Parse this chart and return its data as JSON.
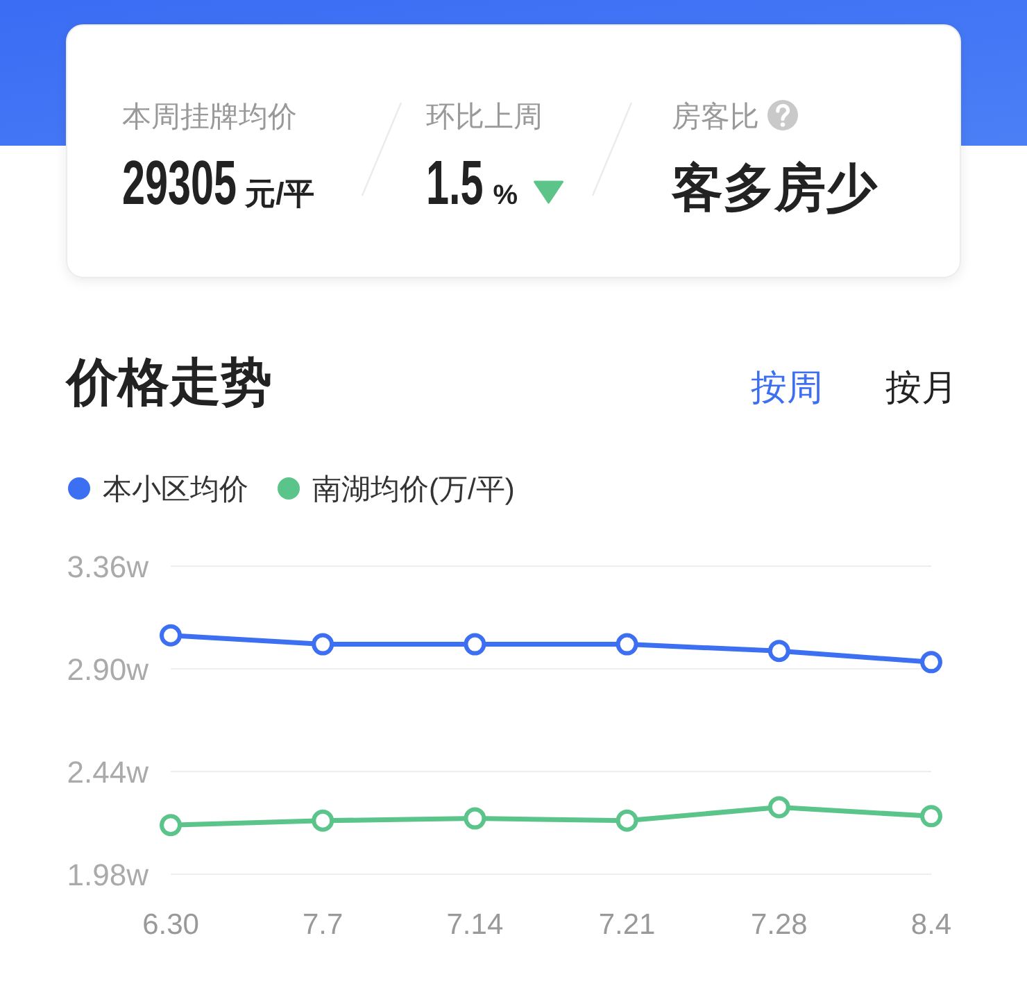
{
  "chart_data": [
    {
      "type": "other",
      "annotations": [
        "本周挂牌均价",
        "29305",
        "元/平",
        "环比上周",
        "1.5",
        "%",
        "房客比",
        "客多房少"
      ]
    },
    {
      "type": "line",
      "title": "价格走势",
      "annotations": [
        "按周",
        "按月"
      ],
      "categories": [
        "6.30",
        "7.7",
        "7.14",
        "7.21",
        "7.28",
        "8.4"
      ],
      "series": [
        {
          "name": "本小区均价",
          "color": "#3d6ff2",
          "values": [
            3.05,
            3.01,
            3.01,
            3.01,
            2.98,
            2.93
          ]
        },
        {
          "name": "南湖均价(万/平)",
          "color": "#5bc48a",
          "values": [
            2.2,
            2.22,
            2.23,
            2.22,
            2.28,
            2.24
          ]
        }
      ],
      "ylim": [
        1.98,
        3.36
      ],
      "yticks": [
        {
          "value": 1.98,
          "label": "1.98w"
        },
        {
          "value": 2.44,
          "label": "2.44w"
        },
        {
          "value": 2.9,
          "label": "2.90w"
        },
        {
          "value": 3.36,
          "label": "3.36w"
        }
      ],
      "grid": "y",
      "legend": "top left",
      "marker": "circle",
      "line_style": "solid"
    }
  ]
}
